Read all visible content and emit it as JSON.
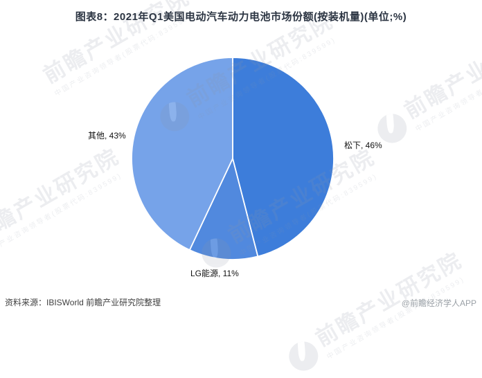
{
  "title": "图表8：2021年Q1美国电动汽车动力电池市场份额(按装机量)(单位;%)",
  "chart_data": {
    "type": "pie",
    "title": "2021年Q1美国电动汽车动力电池市场份额(按装机量)",
    "unit": "%",
    "start_angle_deg": 0,
    "direction": "clockwise",
    "legend": "none",
    "label_format": "name, value%",
    "slices": [
      {
        "name": "松下",
        "value": 46,
        "display": "松下, 46%",
        "color": "#3d7dda"
      },
      {
        "name": "LG能源",
        "value": 11,
        "display": "LG能源, 11%",
        "color": "#5189de"
      },
      {
        "name": "其他",
        "value": 43,
        "display": "其他, 43%",
        "color": "#76a3e9"
      }
    ]
  },
  "footer": {
    "source": "资料来源：IBISWorld 前瞻产业研究院整理",
    "credit": "@前瞻经济学人APP"
  },
  "watermark": {
    "text": "前瞻产业研究院",
    "subtext": "中国产业咨询领导者(股票代码:839599)",
    "logo": "qianzhan-logo"
  },
  "colors": {
    "background": "#ffffff",
    "title_text": "#2b3442",
    "label_text": "#111111",
    "source_text": "#3f3f3f",
    "credit_text": "#9aa0a6",
    "slice_divider": "#ffffff"
  }
}
